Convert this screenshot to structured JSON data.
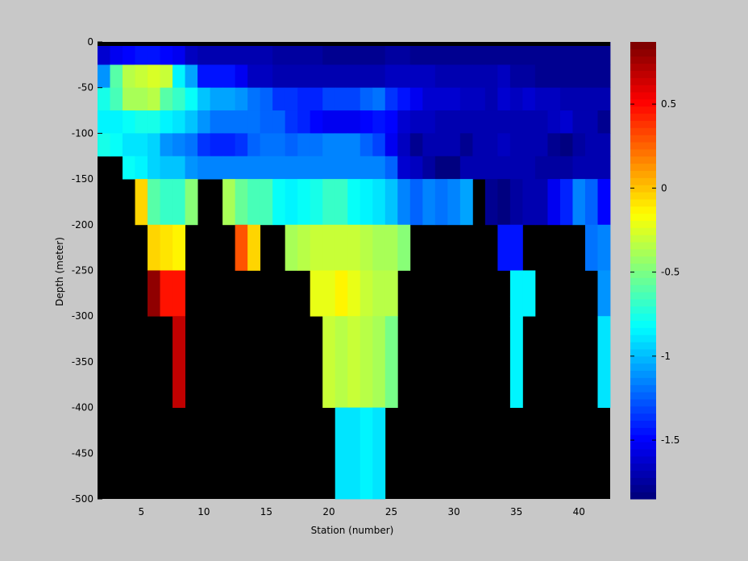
{
  "chart_data": {
    "type": "heatmap",
    "xlabel": "Station (number)",
    "ylabel": "Depth (meter)",
    "xlim": [
      1.5,
      42.5
    ],
    "ylim": [
      -500,
      0
    ],
    "x_ticks": [
      5,
      10,
      15,
      20,
      25,
      30,
      35,
      40
    ],
    "y_ticks": [
      0,
      -50,
      -100,
      -150,
      -200,
      -250,
      -300,
      -350,
      -400,
      -450,
      -500
    ],
    "colorbar": {
      "min": -1.85,
      "max": 0.87,
      "ticks": [
        0.5,
        0,
        -0.5,
        -1,
        -1.5
      ],
      "tick_labels": [
        "0.5",
        "0",
        "-0.5",
        "-1",
        "-1.5"
      ]
    },
    "background_color": "#000000",
    "depth_bins": [
      {
        "top": 0,
        "bottom": -25
      },
      {
        "top": -25,
        "bottom": -50
      },
      {
        "top": -50,
        "bottom": -75
      },
      {
        "top": -75,
        "bottom": -100
      },
      {
        "top": -100,
        "bottom": -125
      },
      {
        "top": -125,
        "bottom": -150
      },
      {
        "top": -150,
        "bottom": -200
      },
      {
        "top": -200,
        "bottom": -250
      },
      {
        "top": -250,
        "bottom": -300
      },
      {
        "top": -300,
        "bottom": -400
      },
      {
        "top": -400,
        "bottom": -500
      }
    ],
    "stations": [
      2,
      3,
      4,
      5,
      6,
      7,
      8,
      9,
      10,
      11,
      12,
      13,
      14,
      15,
      16,
      17,
      18,
      19,
      20,
      21,
      22,
      23,
      24,
      25,
      26,
      27,
      28,
      29,
      30,
      31,
      32,
      33,
      34,
      35,
      36,
      37,
      38,
      39,
      40,
      41,
      42
    ],
    "values": [
      [
        -1.6,
        -1.55,
        -1.5,
        -1.45,
        -1.45,
        -1.5,
        -1.55,
        -1.65,
        -1.7,
        -1.7,
        -1.7,
        -1.7,
        -1.72,
        -1.72,
        -1.75,
        -1.75,
        -1.75,
        -1.75,
        -1.78,
        -1.8,
        -1.78,
        -1.78,
        -1.78,
        -1.76,
        -1.75,
        -1.78,
        -1.8,
        -1.8,
        -1.8,
        -1.8,
        -1.8,
        -1.8,
        -1.78,
        -1.8,
        -1.8,
        -1.8,
        -1.8,
        -1.8,
        -1.8,
        -1.8,
        -1.8
      ],
      [
        -1.1,
        -0.6,
        -0.35,
        -0.3,
        -0.25,
        -0.3,
        -0.85,
        -1.05,
        -1.45,
        -1.45,
        -1.45,
        -1.55,
        -1.65,
        -1.65,
        -1.7,
        -1.7,
        -1.7,
        -1.7,
        -1.7,
        -1.72,
        -1.7,
        -1.7,
        -1.7,
        -1.68,
        -1.66,
        -1.65,
        -1.68,
        -1.72,
        -1.72,
        -1.72,
        -1.72,
        -1.72,
        -1.68,
        -1.75,
        -1.75,
        -1.8,
        -1.8,
        -1.8,
        -1.8,
        -1.8,
        -1.8
      ],
      [
        -0.75,
        -0.65,
        -0.4,
        -0.4,
        -0.35,
        -0.6,
        -0.7,
        -0.8,
        -1.0,
        -1.05,
        -1.05,
        -1.1,
        -1.2,
        -1.25,
        -1.35,
        -1.35,
        -1.4,
        -1.4,
        -1.3,
        -1.3,
        -1.3,
        -1.25,
        -1.2,
        -1.35,
        -1.45,
        -1.55,
        -1.6,
        -1.62,
        -1.62,
        -1.65,
        -1.68,
        -1.7,
        -1.6,
        -1.65,
        -1.6,
        -1.65,
        -1.65,
        -1.7,
        -1.7,
        -1.7,
        -1.7
      ],
      [
        -0.85,
        -0.85,
        -0.8,
        -0.75,
        -0.75,
        -0.85,
        -0.9,
        -1.0,
        -1.1,
        -1.2,
        -1.2,
        -1.2,
        -1.2,
        -1.25,
        -1.25,
        -1.35,
        -1.4,
        -1.5,
        -1.55,
        -1.55,
        -1.55,
        -1.5,
        -1.45,
        -1.5,
        -1.6,
        -1.65,
        -1.68,
        -1.7,
        -1.72,
        -1.7,
        -1.7,
        -1.72,
        -1.7,
        -1.7,
        -1.72,
        -1.72,
        -1.65,
        -1.6,
        -1.7,
        -1.7,
        -1.8
      ],
      [
        -0.75,
        -0.8,
        -0.9,
        -0.9,
        -0.95,
        -1.1,
        -1.15,
        -1.2,
        -1.35,
        -1.4,
        -1.4,
        -1.35,
        -1.25,
        -1.2,
        -1.2,
        -1.25,
        -1.2,
        -1.2,
        -1.15,
        -1.15,
        -1.15,
        -1.25,
        -1.3,
        -1.55,
        -1.65,
        -1.8,
        -1.7,
        -1.7,
        -1.7,
        -1.8,
        -1.72,
        -1.72,
        -1.65,
        -1.7,
        -1.7,
        -1.72,
        -1.8,
        -1.85,
        -1.75,
        -1.7,
        -1.7
      ],
      [
        null,
        null,
        -0.8,
        -0.85,
        -0.95,
        -1.0,
        -1.0,
        -1.1,
        -1.15,
        -1.15,
        -1.15,
        -1.15,
        -1.15,
        -1.15,
        -1.15,
        -1.15,
        -1.15,
        -1.15,
        -1.15,
        -1.15,
        -1.15,
        -1.15,
        -1.15,
        -1.25,
        -1.6,
        -1.65,
        -1.75,
        -1.85,
        -1.85,
        -1.7,
        -1.7,
        -1.7,
        -1.7,
        -1.72,
        -1.72,
        -1.75,
        -1.75,
        -1.75,
        -1.7,
        -1.7,
        -1.7
      ],
      [
        null,
        null,
        null,
        -0.05,
        -0.6,
        -0.7,
        -0.7,
        -0.45,
        null,
        null,
        -0.4,
        -0.55,
        -0.65,
        -0.65,
        -0.8,
        -0.85,
        -0.8,
        -0.75,
        -0.7,
        -0.7,
        -0.8,
        -0.85,
        -0.9,
        -1.0,
        -1.15,
        -1.25,
        -1.15,
        -1.2,
        -1.15,
        -1.05,
        null,
        -1.8,
        -1.85,
        -1.75,
        -1.7,
        -1.72,
        -1.55,
        -1.4,
        -1.15,
        -1.25,
        -1.5
      ],
      [
        null,
        null,
        null,
        null,
        -0.05,
        -0.1,
        -0.15,
        null,
        null,
        null,
        null,
        0.3,
        -0.05,
        null,
        null,
        -0.4,
        -0.35,
        -0.3,
        -0.3,
        -0.3,
        -0.3,
        -0.35,
        -0.4,
        -0.4,
        -0.45,
        null,
        null,
        null,
        null,
        null,
        null,
        null,
        -1.45,
        -1.45,
        null,
        null,
        null,
        null,
        null,
        -1.2,
        -1.15
      ],
      [
        null,
        null,
        null,
        null,
        0.8,
        0.45,
        0.45,
        null,
        null,
        null,
        null,
        null,
        null,
        null,
        null,
        null,
        null,
        -0.2,
        -0.2,
        -0.15,
        -0.2,
        -0.3,
        -0.35,
        -0.35,
        null,
        null,
        null,
        null,
        null,
        null,
        null,
        null,
        null,
        -0.85,
        -0.85,
        null,
        null,
        null,
        null,
        null,
        -1.1
      ],
      [
        null,
        null,
        null,
        null,
        null,
        null,
        0.7,
        null,
        null,
        null,
        null,
        null,
        null,
        null,
        null,
        null,
        null,
        null,
        -0.3,
        -0.35,
        -0.3,
        -0.35,
        -0.4,
        -0.5,
        null,
        null,
        null,
        null,
        null,
        null,
        null,
        null,
        null,
        -0.85,
        null,
        null,
        null,
        null,
        null,
        null,
        -0.9
      ],
      [
        null,
        null,
        null,
        null,
        null,
        null,
        null,
        null,
        null,
        null,
        null,
        null,
        null,
        null,
        null,
        null,
        null,
        null,
        null,
        -0.9,
        -0.9,
        -0.85,
        -0.9,
        null,
        null,
        null,
        null,
        null,
        null,
        null,
        null,
        null,
        null,
        null,
        null,
        null,
        null,
        null,
        null,
        null,
        null
      ]
    ]
  }
}
